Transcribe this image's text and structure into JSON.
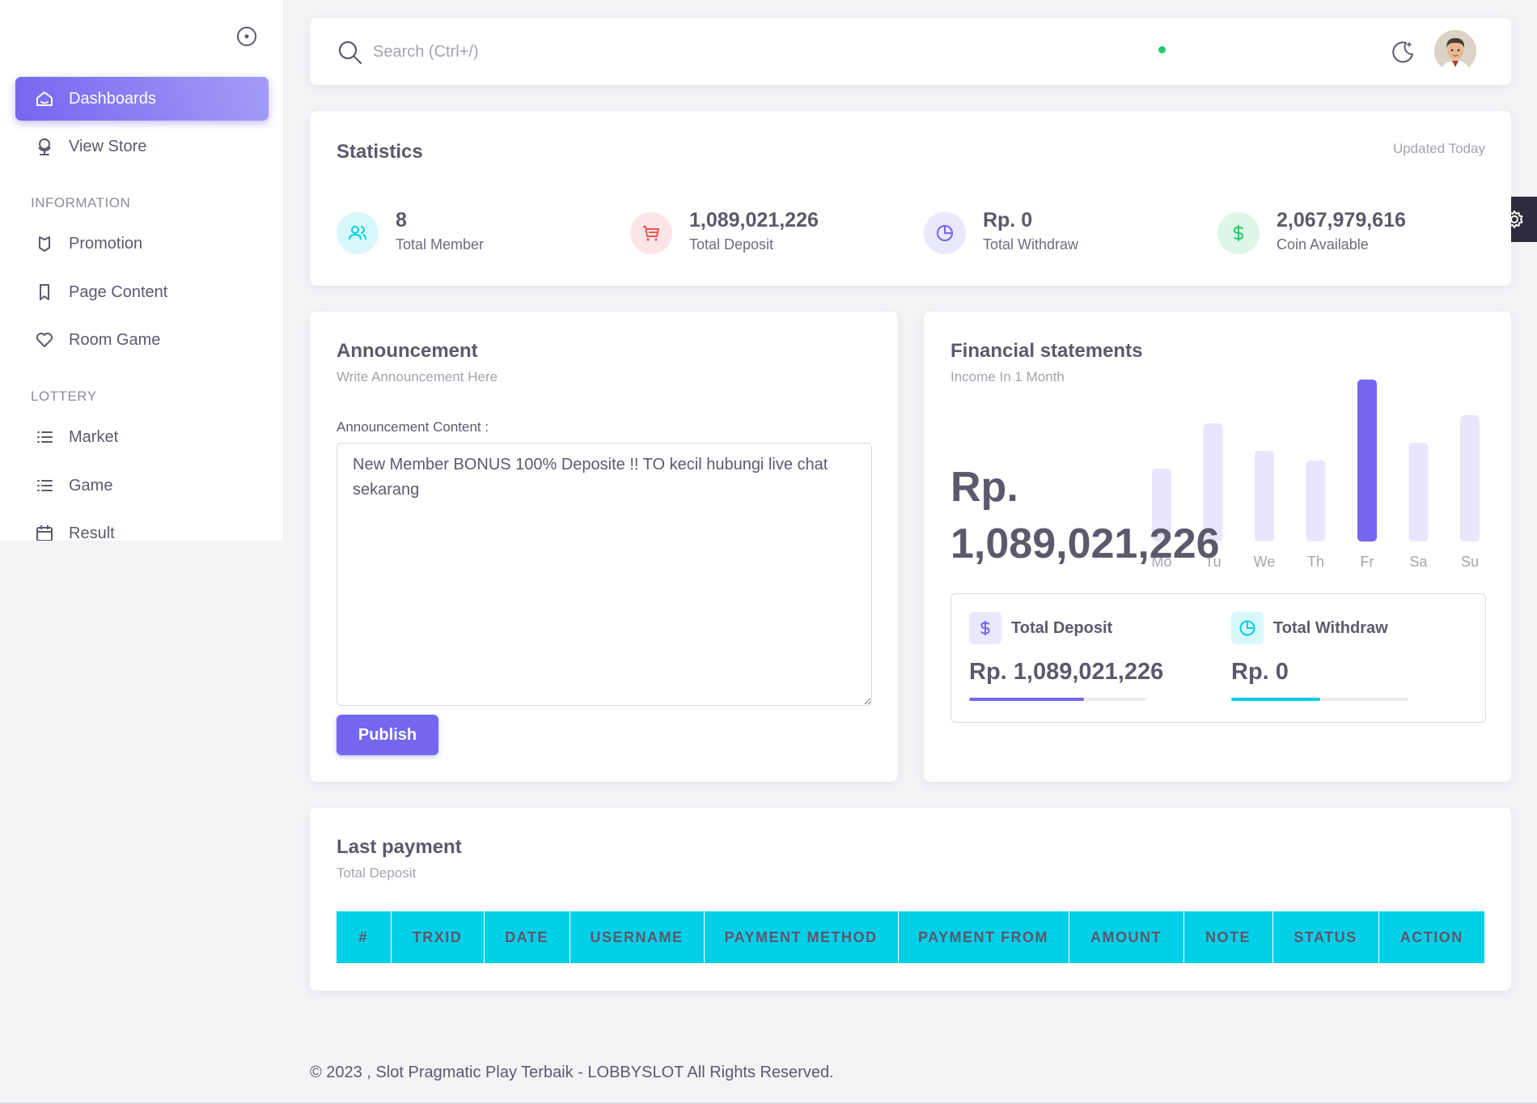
{
  "sidebar": {
    "items": [
      {
        "label": "Dashboards",
        "icon": "home-icon",
        "active": true
      },
      {
        "label": "View Store",
        "icon": "globe-icon"
      },
      {
        "label": "Promotion",
        "icon": "shield-icon"
      },
      {
        "label": "Page Content",
        "icon": "bookmark-icon"
      },
      {
        "label": "Room Game",
        "icon": "heart-icon"
      },
      {
        "label": "Market",
        "icon": "list-icon"
      },
      {
        "label": "Game",
        "icon": "list-icon"
      },
      {
        "label": "Result",
        "icon": "calendar-icon"
      }
    ],
    "headers": [
      "INFORMATION",
      "LOTTERY"
    ]
  },
  "topbar": {
    "search_placeholder": "Search (Ctrl+/)"
  },
  "stats": {
    "title": "Statistics",
    "updated": "Updated Today",
    "items": [
      {
        "value": "8",
        "label": "Total Member",
        "icon": "users-icon",
        "color": "#00cfe8"
      },
      {
        "value": "1,089,021,226",
        "label": "Total Deposit",
        "icon": "cart-icon",
        "color": "#ea5455"
      },
      {
        "value": "Rp. 0",
        "label": "Total Withdraw",
        "icon": "pie-chart-icon",
        "color": "#7367f0"
      },
      {
        "value": "2,067,979,616",
        "label": "Coin Available",
        "icon": "dollar-icon",
        "color": "#28c76f"
      }
    ]
  },
  "announcement": {
    "title": "Announcement",
    "subtitle": "Write Announcement Here",
    "field_label": "Announcement Content :",
    "content": "New Member BONUS 100% Deposite !! TO kecil hubungi live chat sekarang",
    "publish_label": "Publish"
  },
  "finance": {
    "title": "Financial statements",
    "subtitle": "Income In 1 Month",
    "amount": "Rp. 1,089,021,226",
    "deposit_label": "Total Deposit",
    "deposit_value": "Rp. 1,089,021,226",
    "deposit_progress": 0.65,
    "withdraw_label": "Total Withdraw",
    "withdraw_value": "Rp. 0",
    "withdraw_progress": 0.5,
    "colors": {
      "accent": "#7367f0",
      "accent_light": "#e8e6fc",
      "cyan": "#00cfe8"
    }
  },
  "chart_data": {
    "type": "bar",
    "categories": [
      "Mo",
      "Tu",
      "We",
      "Th",
      "Fr",
      "Sa",
      "Su"
    ],
    "values": [
      45,
      73,
      56,
      50,
      100,
      61,
      78
    ],
    "highlight": "Fr",
    "ylim": [
      0,
      100
    ],
    "grid": false
  },
  "payment": {
    "title": "Last payment",
    "subtitle": "Total Deposit",
    "columns": [
      "#",
      "TRXID",
      "DATE",
      "USERNAME",
      "PAYMENT METHOD",
      "PAYMENT FROM",
      "AMOUNT",
      "NOTE",
      "STATUS",
      "ACTION"
    ]
  },
  "footer": {
    "text": "© 2023 , Slot Pragmatic Play Terbaik - LOBBYSLOT All Rights Reserved."
  }
}
